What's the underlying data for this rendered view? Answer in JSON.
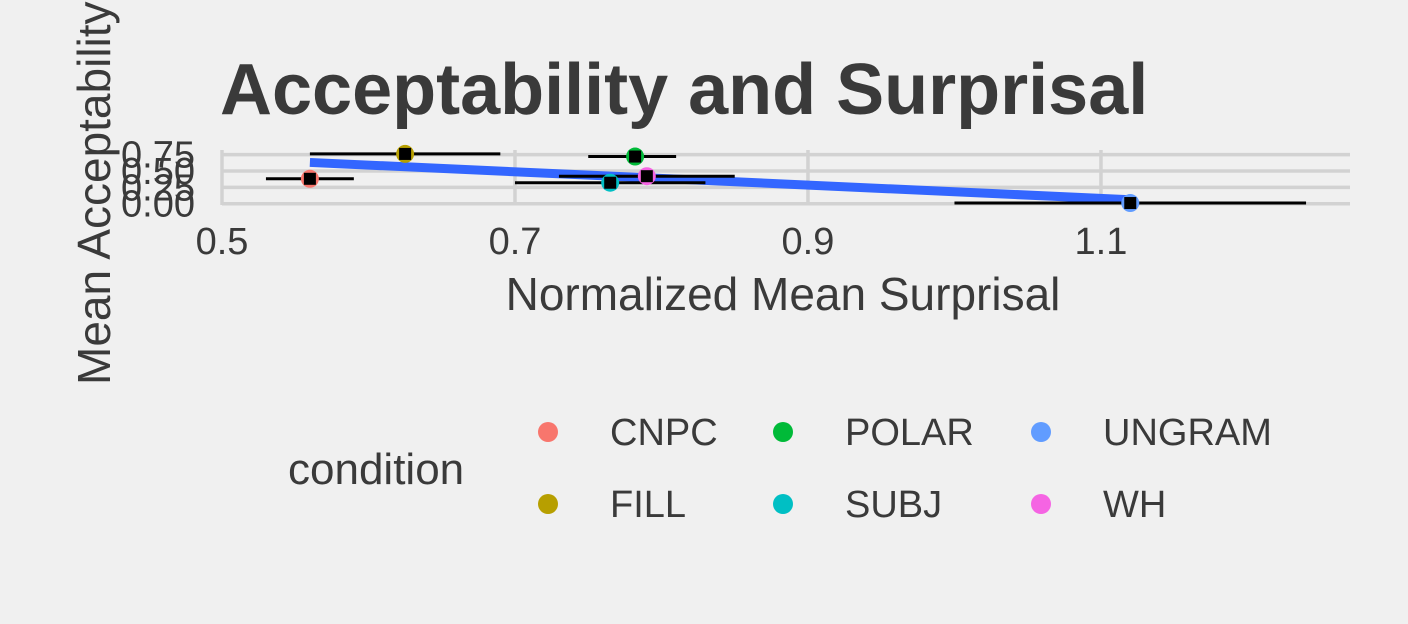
{
  "chart_data": {
    "type": "scatter",
    "title": "Acceptability and Surprisal",
    "xlabel": "Normalized Mean Surprisal",
    "ylabel": "Mean Acceptability",
    "xlim": [
      0.5,
      1.27
    ],
    "ylim": [
      -0.02,
      0.82
    ],
    "x_ticks": [
      0.5,
      0.7,
      0.9,
      1.1
    ],
    "x_tick_labels": [
      "0.5",
      "0.7",
      "0.9",
      "1.1"
    ],
    "y_ticks": [
      0.0,
      0.25,
      0.5,
      0.75
    ],
    "y_tick_labels": [
      "0.00",
      "0.25",
      "0.50",
      "0.75"
    ],
    "grid": true,
    "legend": {
      "title": "condition",
      "position": "bottom",
      "entries": [
        {
          "label": "CNPC",
          "color": "#F8766D"
        },
        {
          "label": "POLAR",
          "color": "#00BA38"
        },
        {
          "label": "UNGRAM",
          "color": "#619CFF"
        },
        {
          "label": "FILL",
          "color": "#B79F00"
        },
        {
          "label": "SUBJ",
          "color": "#00BFC4"
        },
        {
          "label": "WH",
          "color": "#F564E3"
        }
      ]
    },
    "points": [
      {
        "condition": "CNPC",
        "x": 0.56,
        "y": 0.38,
        "xerr_low": 0.53,
        "xerr_high": 0.59
      },
      {
        "condition": "FILL",
        "x": 0.625,
        "y": 0.76,
        "xerr_low": 0.56,
        "xerr_high": 0.69
      },
      {
        "condition": "POLAR",
        "x": 0.782,
        "y": 0.72,
        "xerr_low": 0.75,
        "xerr_high": 0.81
      },
      {
        "condition": "SUBJ",
        "x": 0.765,
        "y": 0.32,
        "xerr_low": 0.7,
        "xerr_high": 0.83
      },
      {
        "condition": "WH",
        "x": 0.79,
        "y": 0.42,
        "xerr_low": 0.73,
        "xerr_high": 0.85
      },
      {
        "condition": "UNGRAM",
        "x": 1.12,
        "y": 0.01,
        "xerr_low": 1.0,
        "xerr_high": 1.24
      }
    ],
    "fit_line": {
      "x": [
        0.56,
        1.12
      ],
      "y": [
        0.63,
        0.06
      ],
      "color": "#3366FF"
    }
  }
}
